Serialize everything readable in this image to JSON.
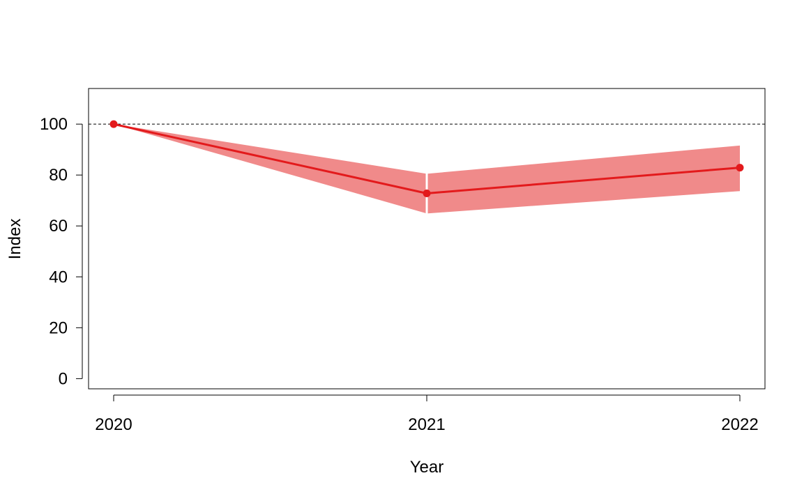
{
  "chart_data": {
    "type": "line",
    "title": "",
    "xlabel": "Year",
    "ylabel": "Index",
    "x": [
      "2020",
      "2021",
      "2022"
    ],
    "ylim": [
      -4,
      114
    ],
    "y_ticks": [
      0,
      20,
      40,
      60,
      80,
      100
    ],
    "x_ticks": [
      "2020",
      "2021",
      "2022"
    ],
    "reference_line": {
      "y": 100,
      "style": "dashed",
      "color": "#000000"
    },
    "grid": false,
    "series": [
      {
        "values": [
          100,
          72.8,
          82.9
        ],
        "color": "#E31A1C",
        "marker": "circle"
      }
    ],
    "bands": [
      {
        "x_from": "2020",
        "x_to": "2021",
        "lower": [
          100,
          64.9
        ],
        "upper": [
          100,
          80.5
        ]
      },
      {
        "x_from": "2021",
        "x_to": "2022",
        "lower": [
          64.9,
          73.7
        ],
        "upper": [
          80.5,
          91.6
        ]
      }
    ],
    "band_color": "#F08A8A"
  }
}
